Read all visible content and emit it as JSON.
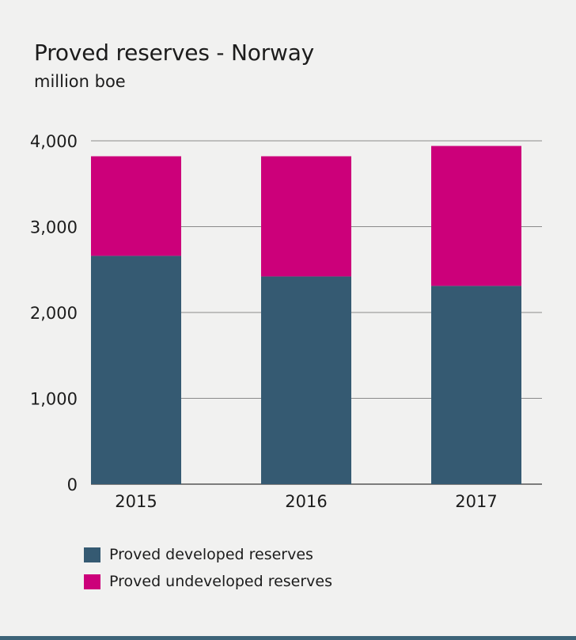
{
  "chart_data": {
    "type": "bar",
    "stacked": true,
    "title": "Proved reserves - Norway",
    "subtitle": "million boe",
    "categories": [
      "2015",
      "2016",
      "2017"
    ],
    "series": [
      {
        "name": "Proved developed reserves",
        "color": "#355a72",
        "values": [
          2660,
          2420,
          2310
        ]
      },
      {
        "name": "Proved undeveloped reserves",
        "color": "#cc007a",
        "values": [
          1160,
          1400,
          1630
        ]
      }
    ],
    "ylim": [
      0,
      4000
    ],
    "yticks": [
      0,
      1000,
      2000,
      3000,
      4000
    ],
    "ytick_labels": [
      "0",
      "1,000",
      "2,000",
      "3,000",
      "4,000"
    ],
    "grid": true,
    "legend_position": "bottom-left"
  },
  "colors": {
    "background": "#f1f1f0",
    "grid": "#8a8a8a",
    "bottom_rule": "#3d6478"
  }
}
